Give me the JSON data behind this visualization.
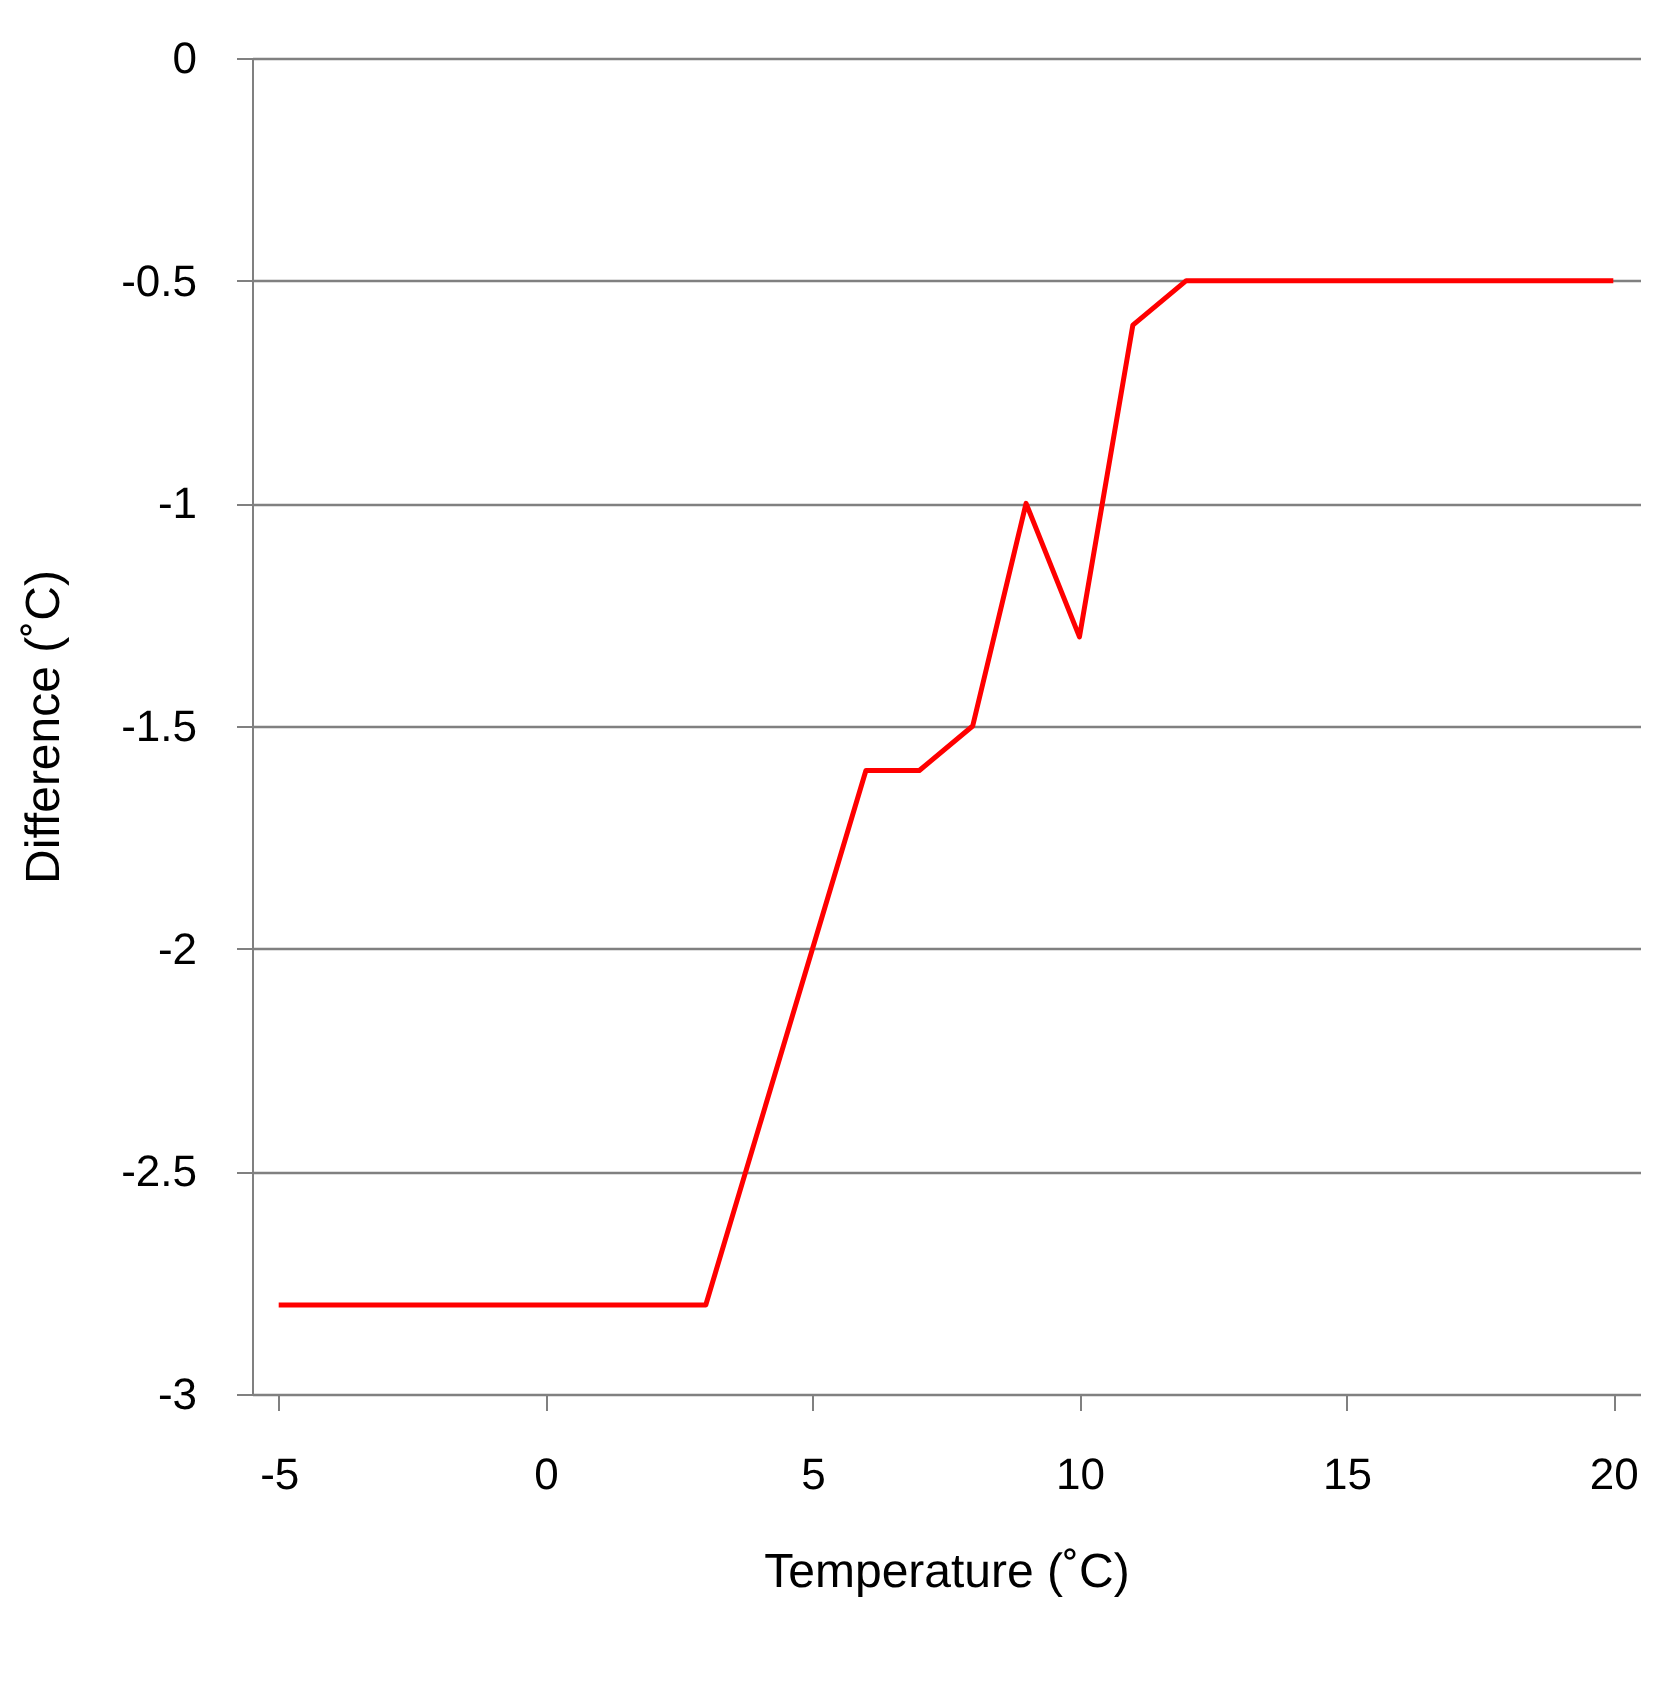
{
  "chart_data": {
    "type": "line",
    "xlabel": "Temperature (˚C)",
    "ylabel": "Difference (˚C)",
    "x": [
      -5,
      3,
      6,
      7,
      8,
      9,
      10,
      11,
      12,
      20
    ],
    "series": [
      {
        "color": "#ff0000",
        "values": [
          -2.8,
          -2.8,
          -1.6,
          -1.6,
          -1.5,
          -1.0,
          -1.3,
          -0.6,
          -0.5,
          -0.5
        ]
      }
    ],
    "xlim": [
      -5.5,
      20.5
    ],
    "xticks": [
      -5,
      0,
      5,
      10,
      15,
      20
    ],
    "ylim": [
      -3,
      0
    ],
    "yticks": [
      -3,
      -2.5,
      -2,
      -1.5,
      -1,
      -0.5,
      0
    ],
    "grid": "y",
    "marker": "none",
    "line_style": "solid"
  }
}
